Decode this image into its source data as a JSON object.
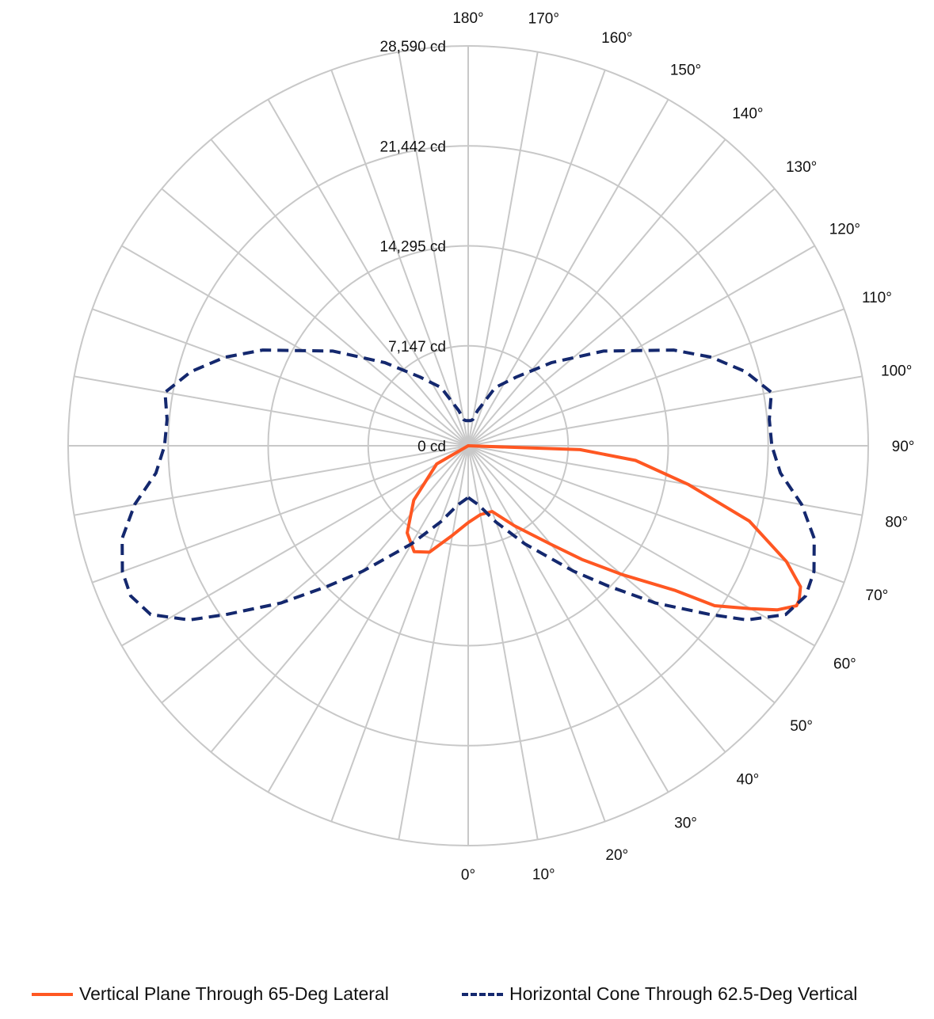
{
  "chart_data": {
    "type": "polar-line",
    "units": "cd",
    "radial_ticks": [
      "0 cd",
      "7,147 cd",
      "14,295 cd",
      "21,442 cd",
      "28,590 cd"
    ],
    "radial_tick_values": [
      0,
      7147,
      14295,
      21442,
      28590
    ],
    "r_max": 28590,
    "angle_labels_right": [
      "0°",
      "10°",
      "20°",
      "30°",
      "40°",
      "50°",
      "60°",
      "70°",
      "80°",
      "90°",
      "100°",
      "110°",
      "120°",
      "130°",
      "140°",
      "150°",
      "160°",
      "170°",
      "180°"
    ],
    "angle_tick_values": [
      0,
      10,
      20,
      30,
      40,
      50,
      60,
      70,
      80,
      90,
      100,
      110,
      120,
      130,
      140,
      150,
      160,
      170,
      180
    ],
    "grid": true,
    "legend_position": "bottom",
    "series": [
      {
        "name": "Vertical Plane Through 65-Deg Lateral",
        "color": "#FF5722",
        "dash": "solid",
        "points": [
          [
            0,
            5500
          ],
          [
            10,
            5000
          ],
          [
            20,
            5000
          ],
          [
            30,
            6600
          ],
          [
            40,
            9200
          ],
          [
            45,
            11500
          ],
          [
            50,
            14300
          ],
          [
            55,
            18000
          ],
          [
            57,
            21000
          ],
          [
            60,
            23300
          ],
          [
            62,
            25000
          ],
          [
            64,
            26100
          ],
          [
            65,
            26100
          ],
          [
            67,
            25800
          ],
          [
            70,
            24200
          ],
          [
            75,
            20800
          ],
          [
            80,
            16000
          ],
          [
            85,
            12000
          ],
          [
            88,
            8000
          ],
          [
            90,
            0
          ],
          [
            270,
            0
          ],
          [
            300,
            2600
          ],
          [
            315,
            5500
          ],
          [
            325,
            7600
          ],
          [
            333,
            8500
          ],
          [
            340,
            8100
          ],
          [
            350,
            6500
          ],
          [
            360,
            5500
          ]
        ]
      },
      {
        "name": "Horizontal Cone Through 62.5-Deg Vertical",
        "color": "#14286E",
        "dash": "dashed",
        "points": [
          [
            0,
            3700
          ],
          [
            10,
            4300
          ],
          [
            20,
            5800
          ],
          [
            30,
            8100
          ],
          [
            40,
            11700
          ],
          [
            45,
            14200
          ],
          [
            50,
            17500
          ],
          [
            55,
            21000
          ],
          [
            58,
            23500
          ],
          [
            62,
            25700
          ],
          [
            66,
            26400
          ],
          [
            70,
            26300
          ],
          [
            75,
            25600
          ],
          [
            80,
            24200
          ],
          [
            85,
            22400
          ],
          [
            90,
            21700
          ],
          [
            95,
            21600
          ],
          [
            100,
            22000
          ],
          [
            105,
            20500
          ],
          [
            110,
            18500
          ],
          [
            115,
            16200
          ],
          [
            125,
            11800
          ],
          [
            135,
            8400
          ],
          [
            145,
            6000
          ],
          [
            155,
            4600
          ],
          [
            165,
            2600
          ],
          [
            170,
            1900
          ],
          [
            175,
            1800
          ],
          [
            180,
            1800
          ],
          [
            185,
            1800
          ],
          [
            190,
            1900
          ],
          [
            195,
            2600
          ],
          [
            205,
            4600
          ],
          [
            215,
            6000
          ],
          [
            225,
            8400
          ],
          [
            235,
            11800
          ],
          [
            245,
            16200
          ],
          [
            250,
            18500
          ],
          [
            255,
            20500
          ],
          [
            260,
            22000
          ],
          [
            265,
            21600
          ],
          [
            270,
            21700
          ],
          [
            275,
            22400
          ],
          [
            280,
            24200
          ],
          [
            285,
            25600
          ],
          [
            290,
            26300
          ],
          [
            294,
            26400
          ],
          [
            298,
            25700
          ],
          [
            302,
            23500
          ],
          [
            305,
            21000
          ],
          [
            310,
            17500
          ],
          [
            315,
            14200
          ],
          [
            320,
            11700
          ],
          [
            330,
            8100
          ],
          [
            340,
            5800
          ],
          [
            350,
            4300
          ],
          [
            360,
            3700
          ]
        ]
      }
    ]
  }
}
